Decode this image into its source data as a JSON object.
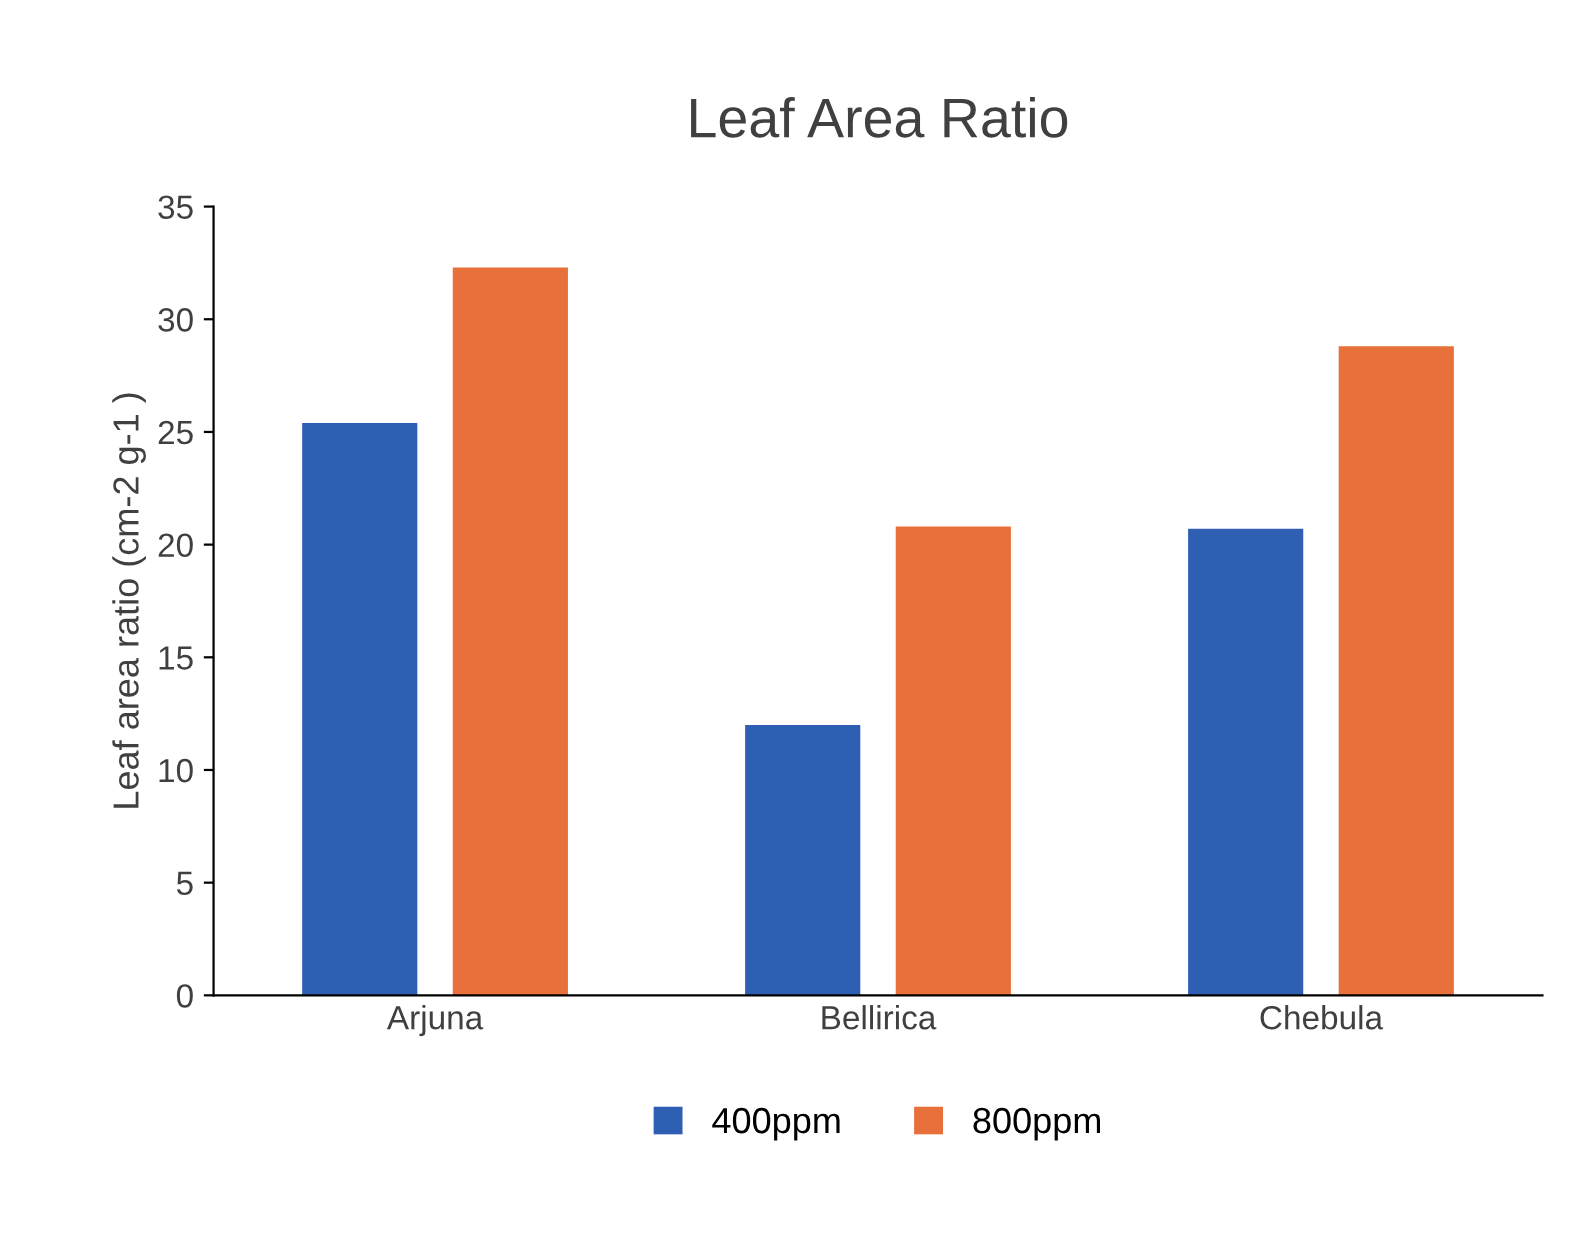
{
  "chart_data": {
    "type": "bar",
    "title": "Leaf Area Ratio",
    "ylabel": "Leaf area ratio (cm-2 g-1 )",
    "categories": [
      "Arjuna",
      "Bellirica",
      "Chebula"
    ],
    "series": [
      {
        "name": "400ppm",
        "color": "#2f5fb3",
        "values": [
          25.4,
          12.0,
          20.7
        ]
      },
      {
        "name": "800ppm",
        "color": "#e8703a",
        "values": [
          32.3,
          20.8,
          28.8
        ]
      }
    ],
    "ylim": [
      0,
      35
    ],
    "yticks": [
      0,
      5,
      10,
      15,
      20,
      25,
      30,
      35
    ],
    "grid": false,
    "legend": "bottom"
  }
}
